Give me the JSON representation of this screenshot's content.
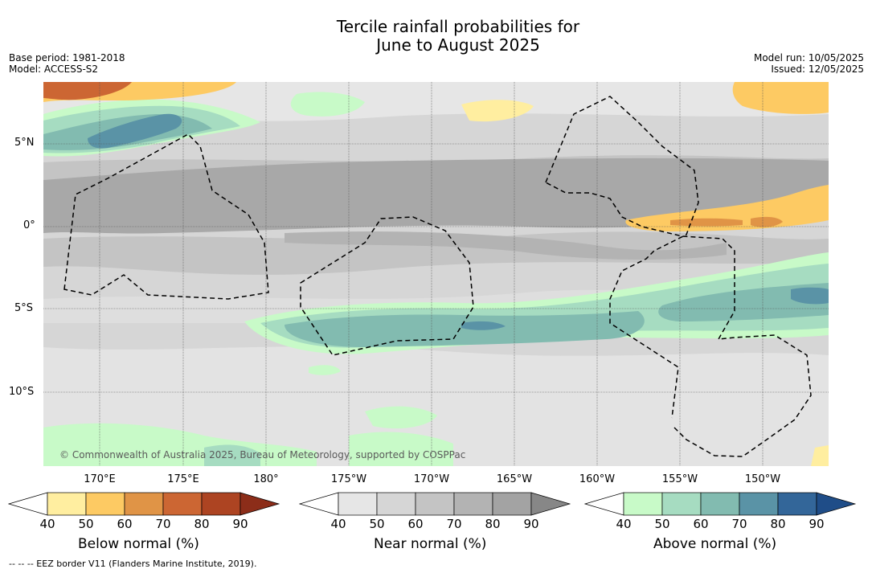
{
  "title_line1": "Tercile rainfall probabilities for",
  "title_line2": "June to August 2025",
  "base_period": "Base period: 1981-2018",
  "model": "Model: ACCESS-S2",
  "model_run": "Model run: 10/05/2025",
  "issued": "Issued: 12/05/2025",
  "lat_labels": [
    "5°N",
    "0°",
    "5°S",
    "10°S"
  ],
  "lon_labels": [
    "170°E",
    "175°E",
    "180°",
    "175°W",
    "170°W",
    "165°W",
    "160°W",
    "155°W",
    "150°W"
  ],
  "copyright": "© Commonwealth of Australia 2025, Bureau of Meteorology, supported by COSPPac",
  "colorbars": [
    {
      "label": "Below normal (%)",
      "ticks": [
        "40",
        "50",
        "60",
        "70",
        "80",
        "90"
      ],
      "colors": [
        "#ffffff",
        "#ffeea0",
        "#fdca63",
        "#e09446",
        "#cc6633",
        "#ad4422",
        "#8c2d19"
      ]
    },
    {
      "label": "Near normal (%)",
      "ticks": [
        "40",
        "50",
        "60",
        "70",
        "80",
        "90"
      ],
      "colors": [
        "#ffffff",
        "#e6e6e6",
        "#d6d6d6",
        "#c4c4c4",
        "#b3b3b3",
        "#a3a3a3",
        "#878787"
      ]
    },
    {
      "label": "Above normal (%)",
      "ticks": [
        "40",
        "50",
        "60",
        "70",
        "80",
        "90"
      ],
      "colors": [
        "#ffffff",
        "#c8fac8",
        "#a6dcc1",
        "#82bbb0",
        "#5a93a6",
        "#336699",
        "#1f4d88"
      ]
    }
  ],
  "footnote": "--  --  -- EEZ border V11 (Flanders Marine Institute, 2019)."
}
